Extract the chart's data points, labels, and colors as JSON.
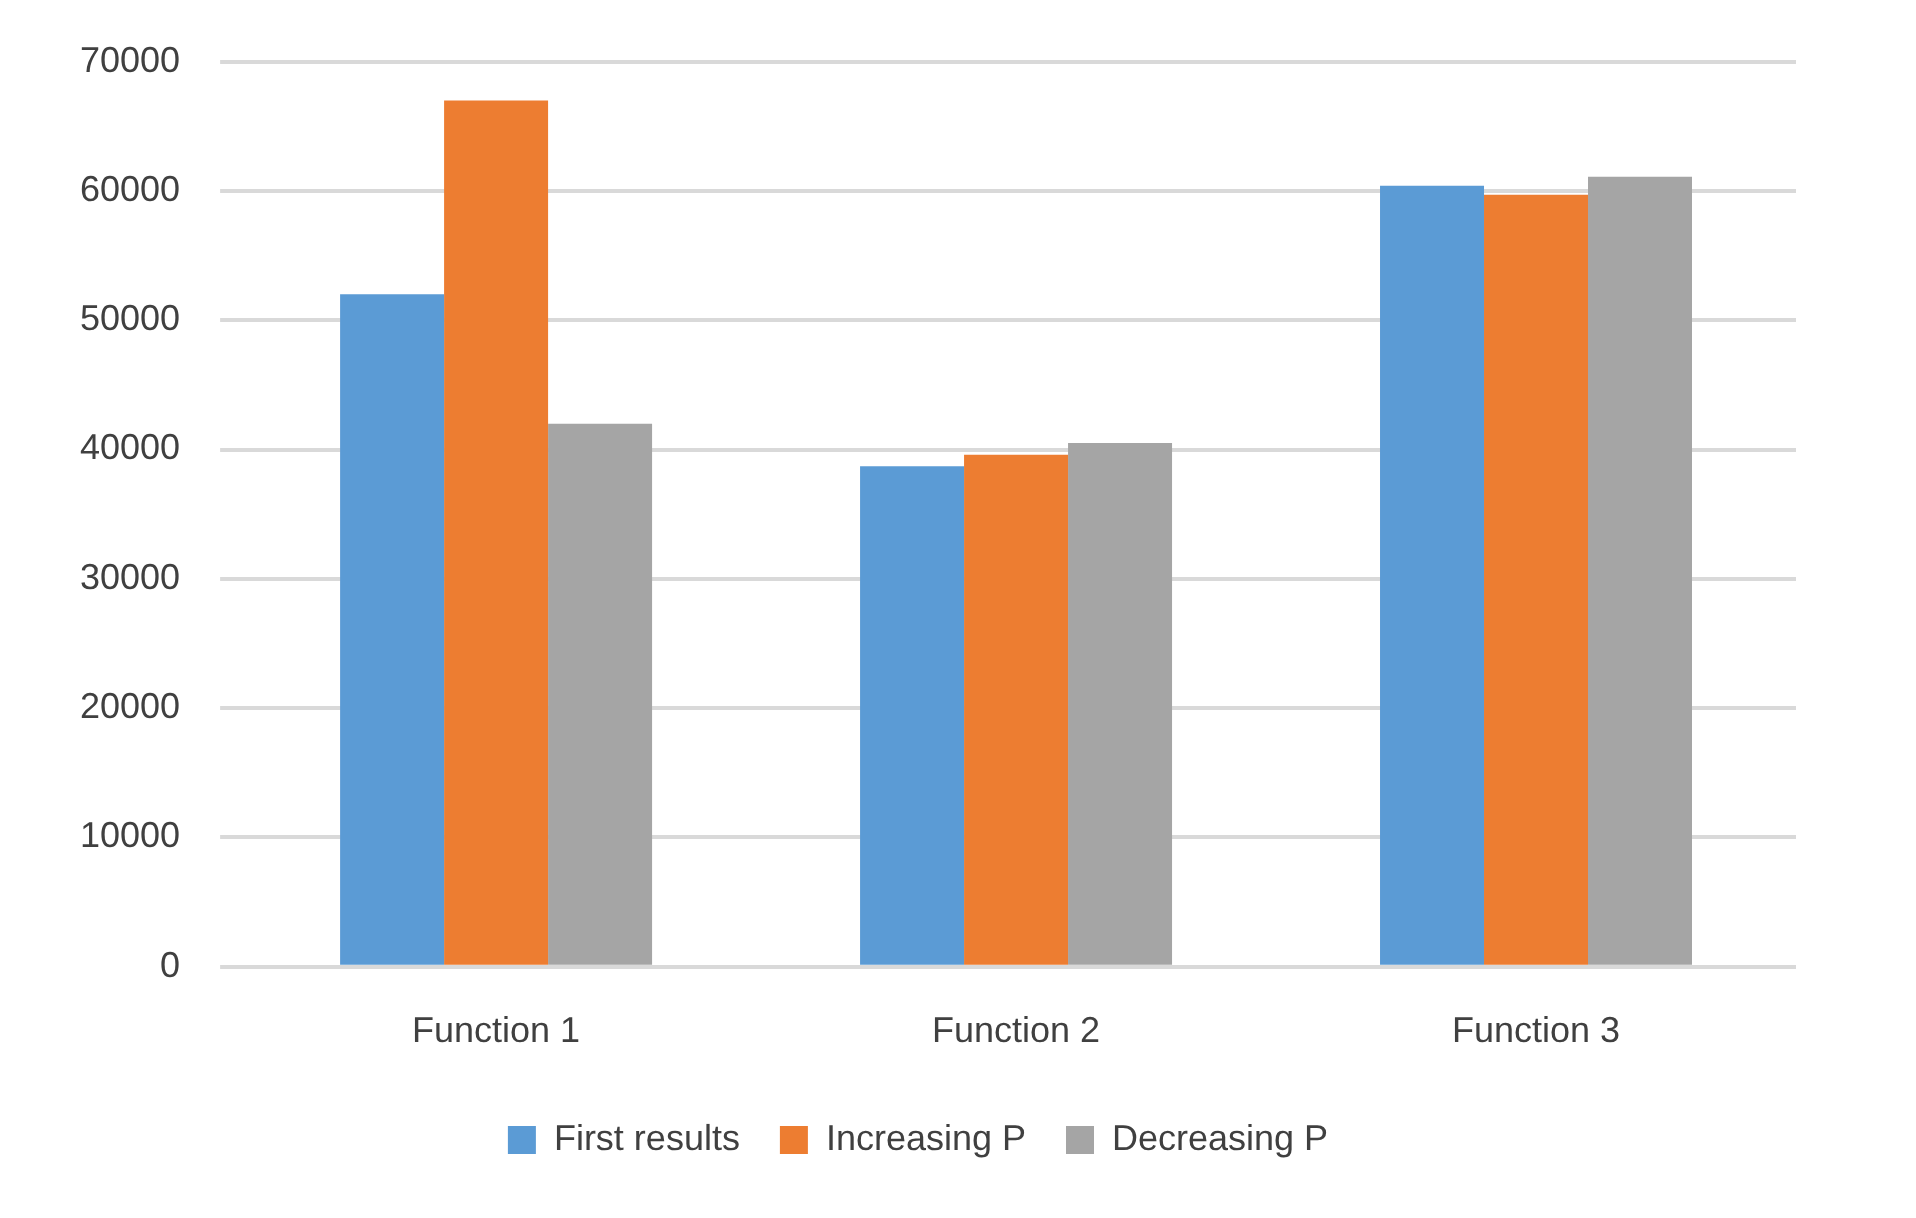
{
  "chart_data": {
    "type": "bar",
    "categories": [
      "Function 1",
      "Function 2",
      "Function 3"
    ],
    "series": [
      {
        "name": "First results",
        "color": "#5b9bd5",
        "values": [
          52000,
          38700,
          60400
        ]
      },
      {
        "name": "Increasing P",
        "color": "#ed7d31",
        "values": [
          67000,
          39600,
          59700
        ]
      },
      {
        "name": "Decreasing P",
        "color": "#a5a5a5",
        "values": [
          42000,
          40500,
          61100
        ]
      }
    ],
    "ylim": [
      0,
      70000
    ],
    "yticks": [
      0,
      10000,
      20000,
      30000,
      40000,
      50000,
      60000,
      70000
    ],
    "grid": "y",
    "legend": "bottom"
  }
}
